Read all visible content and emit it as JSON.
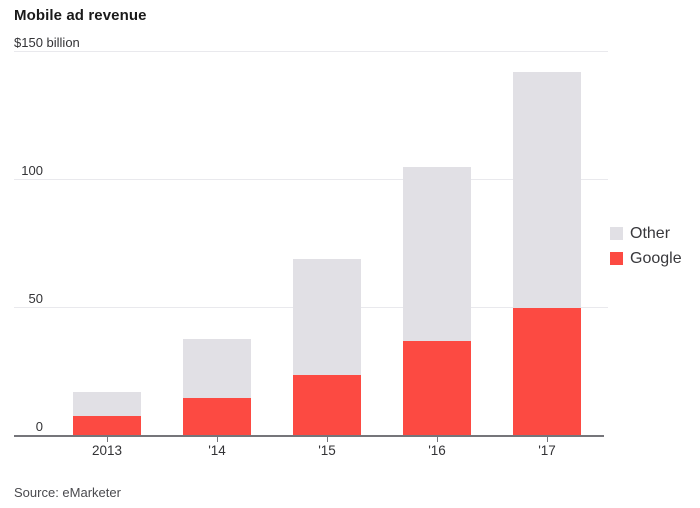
{
  "header": {
    "title": "Mobile ad revenue"
  },
  "chart_data": {
    "type": "bar",
    "stacked": true,
    "title": "Mobile ad revenue",
    "unit_label": "$150 billion",
    "categories": [
      "2013",
      "'14",
      "'15",
      "'16",
      "'17"
    ],
    "series": [
      {
        "name": "Google",
        "color": "#fc4a42",
        "values": [
          8,
          15,
          24,
          37,
          50
        ]
      },
      {
        "name": "Other",
        "color": "#e1e0e5",
        "values": [
          9,
          23,
          45,
          68,
          92
        ]
      }
    ],
    "totals": [
      17,
      38,
      69,
      105,
      142
    ],
    "ylim": [
      0,
      150
    ],
    "yticks": [
      {
        "value": 150,
        "label": "$150 billion"
      },
      {
        "value": 100,
        "label": "100"
      },
      {
        "value": 50,
        "label": "50"
      },
      {
        "value": 0,
        "label": "0"
      }
    ],
    "legend": [
      {
        "label": "Other",
        "color": "#e1e0e5"
      },
      {
        "label": "Google",
        "color": "#fc4a42"
      }
    ],
    "legend_position": "right",
    "grid": true,
    "grid_color": "#e9e9ed",
    "axis_color": "#75757a"
  },
  "source": {
    "text": "Source: eMarketer"
  }
}
